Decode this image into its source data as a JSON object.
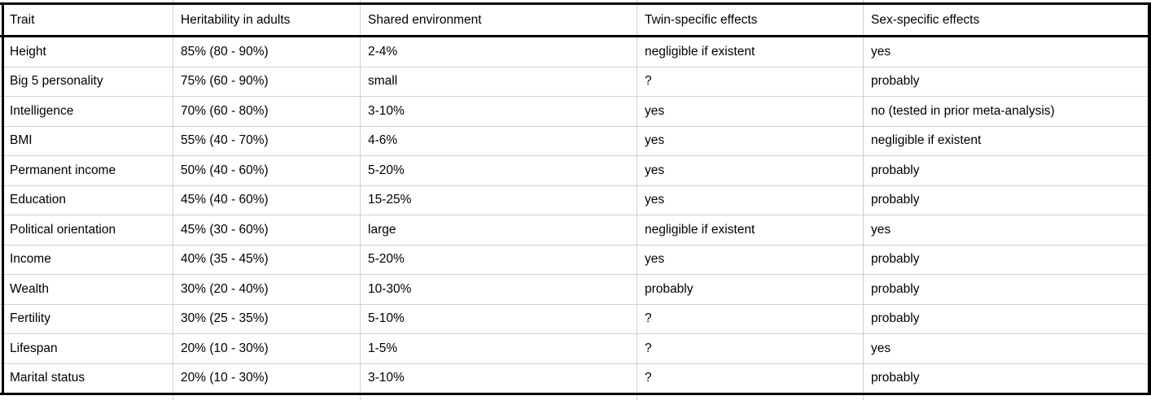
{
  "table": {
    "columns": [
      {
        "label": "Trait"
      },
      {
        "label": "Heritability in adults"
      },
      {
        "label": "Shared environment"
      },
      {
        "label": "Twin-specific effects"
      },
      {
        "label": "Sex-specific effects"
      }
    ],
    "rows": [
      {
        "trait": "Height",
        "heritability": "85% (80 - 90%)",
        "shared_environment": "2-4%",
        "twin_specific": "negligible if existent",
        "sex_specific": "yes"
      },
      {
        "trait": "Big 5 personality",
        "heritability": "75% (60 - 90%)",
        "shared_environment": "small",
        "twin_specific": "?",
        "sex_specific": "probably"
      },
      {
        "trait": "Intelligence",
        "heritability": "70% (60 - 80%)",
        "shared_environment": "3-10%",
        "twin_specific": "yes",
        "sex_specific": "no (tested in prior meta-analysis)"
      },
      {
        "trait": "BMI",
        "heritability": "55% (40 - 70%)",
        "shared_environment": "4-6%",
        "twin_specific": "yes",
        "sex_specific": "negligible if existent"
      },
      {
        "trait": "Permanent income",
        "heritability": "50% (40 - 60%)",
        "shared_environment": "5-20%",
        "twin_specific": "yes",
        "sex_specific": "probably"
      },
      {
        "trait": "Education",
        "heritability": "45% (40 - 60%)",
        "shared_environment": "15-25%",
        "twin_specific": "yes",
        "sex_specific": "probably"
      },
      {
        "trait": "Political orientation",
        "heritability": "45% (30 - 60%)",
        "shared_environment": "large",
        "twin_specific": "negligible if existent",
        "sex_specific": "yes"
      },
      {
        "trait": "Income",
        "heritability": "40% (35 - 45%)",
        "shared_environment": "5-20%",
        "twin_specific": "yes",
        "sex_specific": "probably"
      },
      {
        "trait": "Wealth",
        "heritability": "30% (20 - 40%)",
        "shared_environment": "10-30%",
        "twin_specific": "probably",
        "sex_specific": "probably"
      },
      {
        "trait": "Fertility",
        "heritability": "30% (25 - 35%)",
        "shared_environment": "5-10%",
        "twin_specific": "?",
        "sex_specific": "probably"
      },
      {
        "trait": "Lifespan",
        "heritability": "20% (10 - 30%)",
        "shared_environment": "1-5%",
        "twin_specific": "?",
        "sex_specific": "yes"
      },
      {
        "trait": "Marital status",
        "heritability": "20% (10 - 30%)",
        "shared_environment": "3-10%",
        "twin_specific": "?",
        "sex_specific": "probably"
      }
    ]
  },
  "colors": {
    "background": "#ffffff",
    "text": "#000000",
    "grid_line": "#d0d0d0",
    "table_border": "#000000"
  }
}
